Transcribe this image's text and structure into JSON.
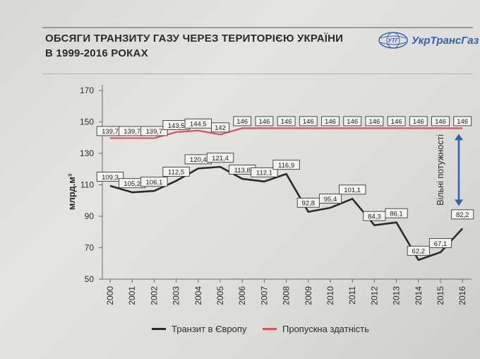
{
  "slide": {
    "title_line1": "ОБСЯГИ ТРАНЗИТУ ГАЗУ ЧЕРЕЗ ТЕРИТОРІЄЮ УКРАЇНИ",
    "title_line2": "В 1999-2016 РОКАХ",
    "logo_text": "УкрТрансГаз",
    "logo_mark_text": "УТГ"
  },
  "colors": {
    "transit": "#2a2a2e",
    "capacity": "#d9505c",
    "arrow": "#2f5fb8",
    "grid": "#6a6a6a"
  },
  "chart_data": {
    "type": "line",
    "ylabel": "млрд.м³",
    "ylim": [
      50,
      170
    ],
    "yticks": [
      50,
      70,
      90,
      110,
      130,
      150,
      170
    ],
    "categories": [
      "2000",
      "2001",
      "2002",
      "2003",
      "2004",
      "2005",
      "2006",
      "2007",
      "2008",
      "2009",
      "2010",
      "2011",
      "2012",
      "2013",
      "2014",
      "2015",
      "2016"
    ],
    "series": [
      {
        "name": "Транзит в Європу",
        "values": [
          109.3,
          105.2,
          106.1,
          112.5,
          120.4,
          121.4,
          113.8,
          112.1,
          116.9,
          92.8,
          95.4,
          101.1,
          84.3,
          86.1,
          62.2,
          67.1,
          82.2
        ],
        "labels": [
          "109,3",
          "105,2",
          "106,1",
          "112,5",
          "120,4",
          "121,4",
          "113,8",
          "112,1",
          "116,9",
          "92,8",
          "95,4",
          "101,1",
          "84,3",
          "86,1",
          "62,2",
          "67,1",
          "82,2"
        ]
      },
      {
        "name": "Пропускна здатність",
        "values": [
          139.7,
          139.7,
          139.7,
          143.5,
          144.5,
          142,
          146,
          146,
          146,
          146,
          146,
          146,
          146,
          146,
          146,
          146,
          146
        ],
        "labels": [
          "139,7",
          "139,7",
          "139,7",
          "143,5",
          "144,5",
          "142",
          "146",
          "146",
          "146",
          "146",
          "146",
          "146",
          "146",
          "146",
          "146",
          "146",
          "146"
        ]
      }
    ],
    "annotation": "Вільні потужності",
    "grid": false,
    "legend_position": "bottom"
  }
}
